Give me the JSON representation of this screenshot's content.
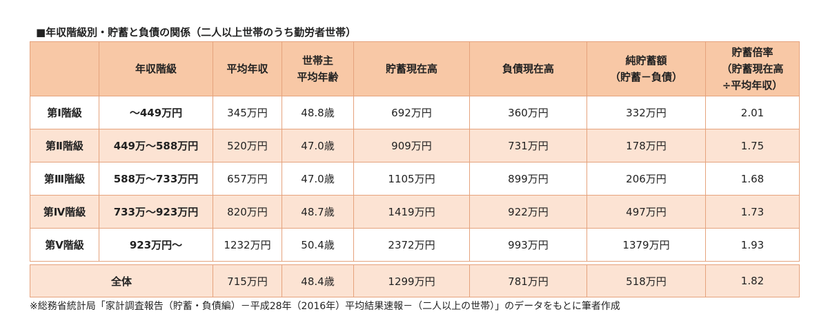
{
  "title": "■年収階級別・貯蓄と負債の関係（二人以上世帯のうち勤労者世帯）",
  "table": {
    "header": [
      [
        "年収階級"
      ],
      [
        "平均年収"
      ],
      [
        "世帯主",
        "平均年齢"
      ],
      [
        "貯蓄現在高"
      ],
      [
        "負債現在高"
      ],
      [
        "純貯蓄額",
        "（貯蓄－負債）"
      ],
      [
        "貯蓄倍率",
        "（貯蓄現在高",
        "÷平均年収）"
      ]
    ],
    "rows": [
      [
        "第Ⅰ階級",
        "～449万円",
        "345万円",
        "48.8歳",
        "692万円",
        "360万円",
        "332万円",
        "2.01"
      ],
      [
        "第Ⅱ階級",
        "449万～588万円",
        "520万円",
        "47.0歳",
        "909万円",
        "731万円",
        "178万円",
        "1.75"
      ],
      [
        "第Ⅲ階級",
        "588万～733万円",
        "657万円",
        "47.0歳",
        "1105万円",
        "899万円",
        "206万円",
        "1.68"
      ],
      [
        "第Ⅳ階級",
        "733万～923万円",
        "820万円",
        "48.7歳",
        "1419万円",
        "922万円",
        "497万円",
        "1.73"
      ],
      [
        "第Ⅴ階級",
        "923万円～",
        "1232万円",
        "50.4歳",
        "2372万円",
        "993万円",
        "1379万円",
        "1.93"
      ]
    ],
    "total": [
      "全体",
      "715万円",
      "48.4歳",
      "1299万円",
      "781万円",
      "518万円",
      "1.82"
    ]
  },
  "footnote": "※総務省統計局「家計調査報告（貯蓄・負債編）－平成28年（2016年）平均結果速報－（二人以上の世帯）」のデータをもとに筆者作成"
}
